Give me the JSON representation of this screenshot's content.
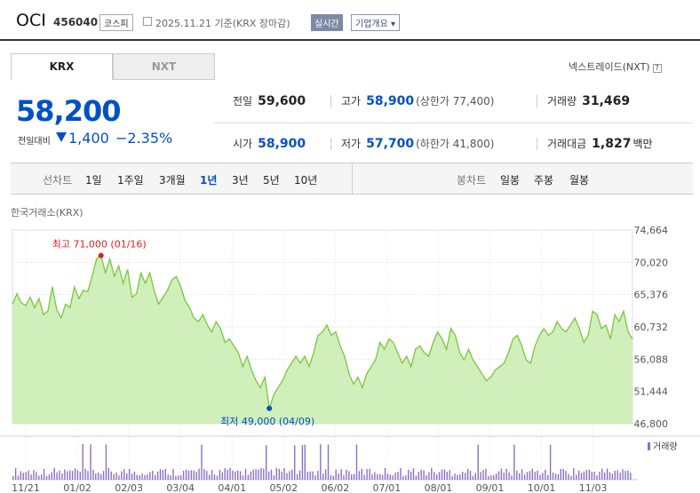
{
  "header": {
    "company": "OCI",
    "code": "456040",
    "market": "코스피",
    "date_text": "2025.11.21 기준(KRX 장마감)",
    "realtime": "실시간",
    "overview": "기업개요 ▾"
  },
  "tabs": [
    {
      "label": "KRX"
    },
    {
      "label": "NXT"
    }
  ],
  "nxt_link": "넥스트레이드(NXT)",
  "price": {
    "current": "58,200",
    "prev_label": "전일대비",
    "change": "1,400",
    "change_pct": "−2.35%"
  },
  "stats": {
    "prev_close_label": "전일",
    "prev_close": "59,600",
    "high_label": "고가",
    "high": "58,900",
    "upper_limit": "(상한가 77,400)",
    "volume_label": "거래량",
    "volume": "31,469",
    "open_label": "시가",
    "open": "58,900",
    "low_label": "저가",
    "low": "57,700",
    "lower_limit": "(하한가 41,800)",
    "amount_label": "거래대금",
    "amount": "1,827",
    "amount_unit": "백만"
  },
  "period": {
    "line_label": "선차트",
    "line_items": [
      "1일",
      "1주일",
      "3개월",
      "1년",
      "3년",
      "5년",
      "10년"
    ],
    "selected": "1년",
    "candle_label": "봉차트",
    "candle_items": [
      "일봉",
      "주봉",
      "월봉"
    ]
  },
  "exchange_label": "한국거래소(KRX)",
  "chart_data": {
    "type": "area",
    "y_ticks": [
      "74,664",
      "70,020",
      "65,376",
      "60,732",
      "56,088",
      "51,444",
      "46,800"
    ],
    "ylim": [
      46800,
      74664
    ],
    "x_ticks": [
      "11/21",
      "01/02",
      "02/03",
      "03/04",
      "04/01",
      "05/02",
      "06/02",
      "07/01",
      "08/01",
      "09/01",
      "10/01",
      "11/03"
    ],
    "max_label": "최고 71,000 (01/16)",
    "min_label": "최저 49,000 (04/09)",
    "volume_legend": "거래량",
    "line_color": "#78c83c",
    "values": [
      64000,
      65500,
      64200,
      63800,
      65000,
      63500,
      64800,
      62500,
      63000,
      66500,
      63200,
      62000,
      64000,
      63500,
      66500,
      64800,
      66000,
      65800,
      68000,
      70500,
      71000,
      68500,
      70500,
      68000,
      69500,
      67000,
      69000,
      65000,
      65500,
      68500,
      67000,
      68500,
      66000,
      64000,
      65000,
      66000,
      67500,
      68000,
      66500,
      64500,
      63500,
      62000,
      61500,
      62500,
      61000,
      60000,
      61500,
      60500,
      58500,
      59000,
      58000,
      57000,
      55000,
      56500,
      54500,
      53000,
      52000,
      53500,
      49000,
      51000,
      52000,
      53000,
      54500,
      55500,
      56500,
      55500,
      56500,
      55000,
      57000,
      59500,
      60000,
      61000,
      59500,
      60000,
      58000,
      56500,
      54000,
      52500,
      53500,
      52000,
      54000,
      55000,
      56000,
      58500,
      57500,
      59000,
      58500,
      57000,
      55500,
      56500,
      55000,
      57500,
      58000,
      57000,
      56500,
      58500,
      60000,
      59000,
      57500,
      60500,
      59500,
      57000,
      56000,
      57500,
      56000,
      55000,
      54000,
      53000,
      53500,
      54500,
      55000,
      55500,
      57000,
      59000,
      59500,
      58000,
      56000,
      55500,
      58000,
      59500,
      60500,
      59500,
      60000,
      61500,
      60500,
      60000,
      61000,
      62000,
      60500,
      58500,
      59500,
      63000,
      62500,
      60500,
      61000,
      59000,
      62500,
      61500,
      63000,
      60000,
      59000
    ]
  }
}
